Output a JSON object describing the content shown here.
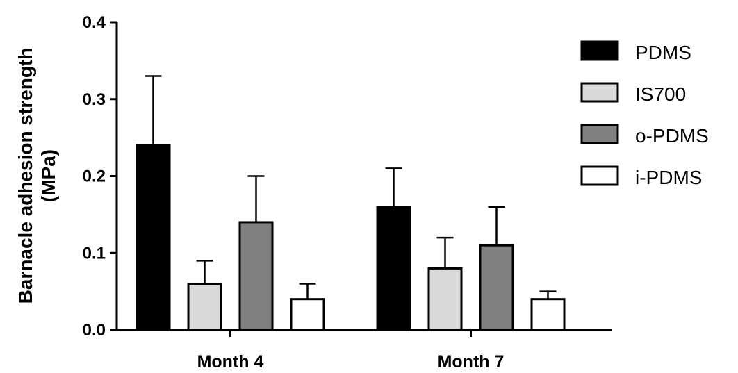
{
  "chart_data": {
    "type": "bar",
    "categories": [
      "Month 4",
      "Month 7"
    ],
    "series": [
      {
        "name": "PDMS",
        "values": [
          0.24,
          0.16
        ],
        "errors": [
          0.09,
          0.05
        ],
        "color": "#000000"
      },
      {
        "name": "IS700",
        "values": [
          0.06,
          0.08
        ],
        "errors": [
          0.03,
          0.04
        ],
        "color": "#d9d9d9"
      },
      {
        "name": "o-PDMS",
        "values": [
          0.14,
          0.11
        ],
        "errors": [
          0.06,
          0.05
        ],
        "color": "#808080"
      },
      {
        "name": "i-PDMS",
        "values": [
          0.04,
          0.04
        ],
        "errors": [
          0.02,
          0.01
        ],
        "color": "#ffffff"
      }
    ],
    "ylabel_line1": "Barnacle adhesion strength",
    "ylabel_line2": "(MPa)",
    "xlabel": "",
    "ylim": [
      0,
      0.4
    ],
    "yticks": [
      "0.0",
      "0.1",
      "0.2",
      "0.3",
      "0.4"
    ],
    "legend_position": "top-right",
    "grid": false
  }
}
